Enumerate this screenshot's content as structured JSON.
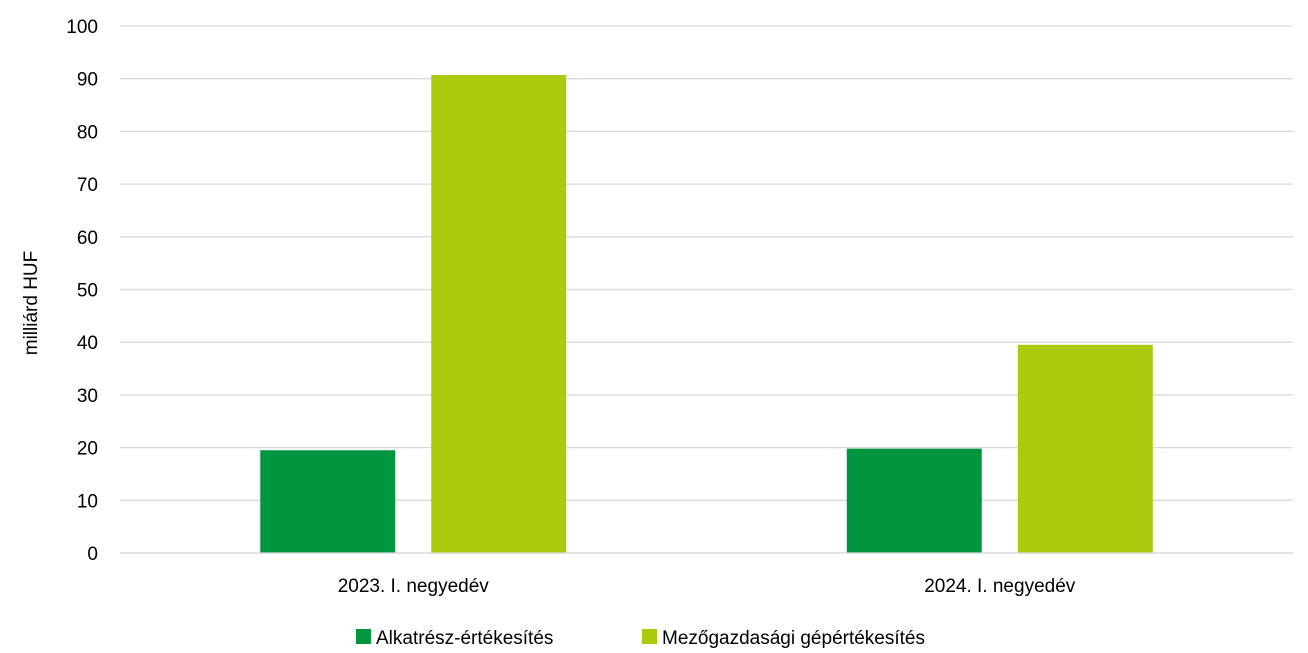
{
  "chart_data": {
    "type": "bar",
    "categories": [
      "2023. I. negyedév",
      "2024. I. negyedév"
    ],
    "series": [
      {
        "name": "Alkatrész-értékesítés",
        "values": [
          19.5,
          19.8
        ],
        "color": "#009640"
      },
      {
        "name": "Mezőgazdasági gépértékesítés",
        "values": [
          90.7,
          39.5
        ],
        "color": "#acc90d"
      }
    ],
    "title": "",
    "xlabel": "",
    "ylabel": "milliárd HUF",
    "ylim": [
      0,
      100
    ],
    "yticks": [
      0,
      10,
      20,
      30,
      40,
      50,
      60,
      70,
      80,
      90,
      100
    ],
    "grid": true,
    "legend_position": "bottom"
  }
}
